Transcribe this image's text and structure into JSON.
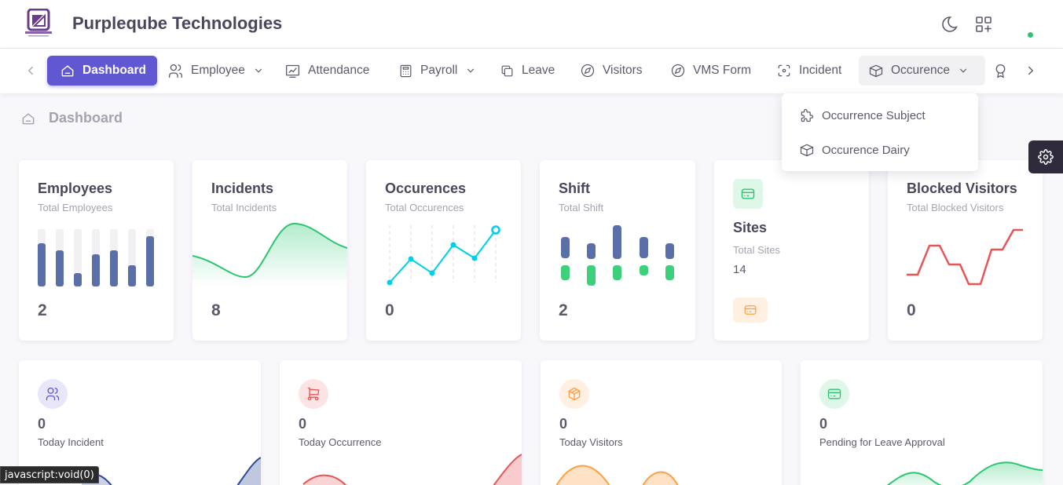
{
  "app": {
    "brand": "Purpleqube Technologies"
  },
  "nav": {
    "items": [
      {
        "label": "Dashboard"
      },
      {
        "label": "Employee"
      },
      {
        "label": "Attendance"
      },
      {
        "label": "Payroll"
      },
      {
        "label": "Leave"
      },
      {
        "label": "Visitors"
      },
      {
        "label": "VMS Form"
      },
      {
        "label": "Incident"
      },
      {
        "label": "Occurence"
      }
    ]
  },
  "dropdown": {
    "items": [
      {
        "label": "Occurrence Subject"
      },
      {
        "label": "Occurence Dairy"
      }
    ]
  },
  "breadcrumb": {
    "label": "Dashboard"
  },
  "stats": [
    {
      "title": "Employees",
      "subtitle": "Total Employees",
      "value": "2"
    },
    {
      "title": "Incidents",
      "subtitle": "Total Incidents",
      "value": "8"
    },
    {
      "title": "Occurences",
      "subtitle": "Total Occurences",
      "value": "0"
    },
    {
      "title": "Shift",
      "subtitle": "Total Shift",
      "value": "2"
    },
    {
      "title": "Sites",
      "subtitle": "Total Sites",
      "value": "14"
    },
    {
      "title": "Blocked Visitors",
      "subtitle": "Total Blocked Visitors",
      "value": "0"
    }
  ],
  "bottom": [
    {
      "value": "0",
      "label": "Today Incident"
    },
    {
      "value": "0",
      "label": "Today Occurrence"
    },
    {
      "value": "0",
      "label": "Today Visitors"
    },
    {
      "value": "0",
      "label": "Pending for Leave Approval"
    }
  ],
  "status": {
    "text": "javascript:void(0)"
  },
  "colors": {
    "primary": "#6257d2",
    "success": "#28c76f",
    "danger": "#ea5455",
    "warning": "#ff9f43",
    "info": "#00cfe8",
    "bar": "#5a6ea8"
  },
  "icons": [
    "home-icon",
    "users-icon",
    "chart-icon",
    "calculator-icon",
    "copy-icon",
    "compass-icon",
    "crosshair-icon",
    "box-icon",
    "award-icon",
    "moon-icon",
    "grid-plus-icon",
    "gear-icon",
    "cart-icon",
    "package-icon",
    "credit-card-icon"
  ]
}
